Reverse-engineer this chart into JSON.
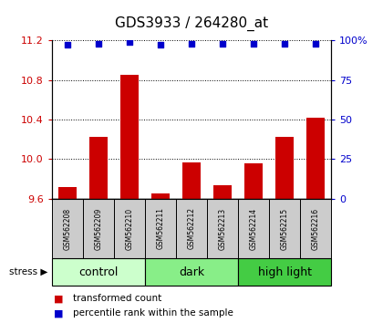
{
  "title": "GDS3933 / 264280_at",
  "samples": [
    "GSM562208",
    "GSM562209",
    "GSM562210",
    "GSM562211",
    "GSM562212",
    "GSM562213",
    "GSM562214",
    "GSM562215",
    "GSM562216"
  ],
  "bar_values": [
    9.72,
    10.22,
    10.85,
    9.65,
    9.97,
    9.74,
    9.96,
    10.22,
    10.42
  ],
  "dot_values": [
    97,
    98,
    99,
    97,
    98,
    98,
    98,
    98,
    98
  ],
  "bar_bottom": 9.6,
  "ylim": [
    9.6,
    11.2
  ],
  "y2lim": [
    0,
    100
  ],
  "yticks": [
    9.6,
    10.0,
    10.4,
    10.8,
    11.2
  ],
  "y2ticks": [
    0,
    25,
    50,
    75,
    100
  ],
  "bar_color": "#cc0000",
  "dot_color": "#0000cc",
  "groups": [
    {
      "label": "control",
      "start": 0,
      "end": 3,
      "color": "#ccffcc"
    },
    {
      "label": "dark",
      "start": 3,
      "end": 6,
      "color": "#88ee88"
    },
    {
      "label": "high light",
      "start": 6,
      "end": 9,
      "color": "#44cc44"
    }
  ],
  "stress_label": "stress",
  "legend_bar_label": "transformed count",
  "legend_dot_label": "percentile rank within the sample",
  "background_color": "#ffffff",
  "sample_box_color": "#cccccc",
  "title_fontsize": 11,
  "tick_fontsize": 8,
  "label_fontsize": 8,
  "group_fontsize": 9
}
